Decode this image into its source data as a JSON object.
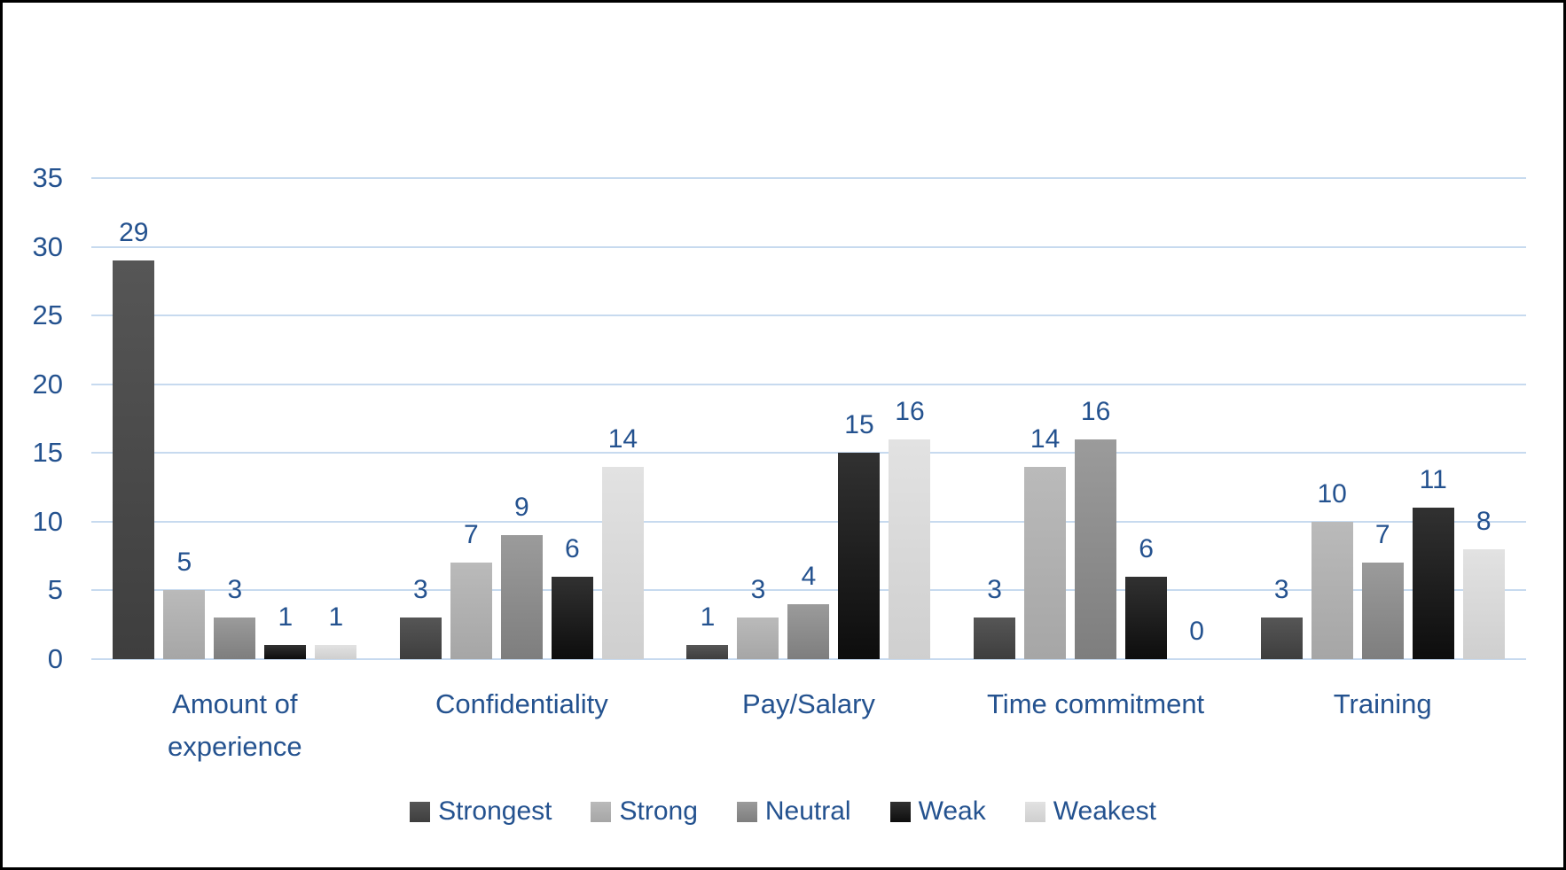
{
  "chart_data": {
    "type": "bar",
    "title": "",
    "xlabel": "",
    "ylabel": "",
    "categories": [
      "Amount of experience",
      "Confidentiality",
      "Pay/Salary",
      "Time commitment",
      "Training"
    ],
    "category_display": [
      [
        "Amount of",
        "experience"
      ],
      [
        "Confidentiality"
      ],
      [
        "Pay/Salary"
      ],
      [
        "Time commitment"
      ],
      [
        "Training"
      ]
    ],
    "series": [
      {
        "name": "Strongest",
        "color": "#4F4F4F",
        "gradient_top": "#565656",
        "gradient_bottom": "#3E3E3E",
        "values": [
          29,
          3,
          1,
          3,
          3
        ]
      },
      {
        "name": "Strong",
        "color": "#B0B0B0",
        "gradient_top": "#BABABA",
        "gradient_bottom": "#A6A6A6",
        "values": [
          5,
          7,
          3,
          14,
          10
        ]
      },
      {
        "name": "Neutral",
        "color": "#8C8C8C",
        "gradient_top": "#9B9B9B",
        "gradient_bottom": "#7E7E7E",
        "values": [
          3,
          9,
          4,
          16,
          7
        ]
      },
      {
        "name": "Weak",
        "color": "#1C1C1C",
        "gradient_top": "#313131",
        "gradient_bottom": "#0D0D0D",
        "values": [
          1,
          6,
          15,
          6,
          11
        ]
      },
      {
        "name": "Weakest",
        "color": "#D9D9D9",
        "gradient_top": "#E2E2E2",
        "gradient_bottom": "#CFCFCF",
        "values": [
          1,
          14,
          16,
          0,
          8
        ]
      }
    ],
    "ylim": [
      0,
      35
    ],
    "yticks": [
      0,
      5,
      10,
      15,
      20,
      25,
      30,
      35
    ],
    "grid": true,
    "data_labels": true,
    "legend_position": "bottom"
  },
  "colors": {
    "text": "#24528F",
    "gridline": "#C7DAEF",
    "axis_line": "#C7DAEF",
    "background": "#FFFFFF",
    "border": "#000000"
  }
}
